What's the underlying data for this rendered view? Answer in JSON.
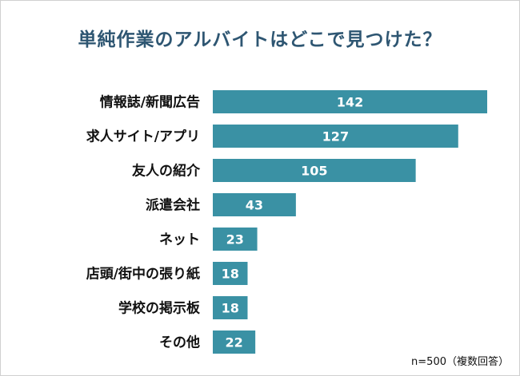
{
  "title": "単純作業のアルバイトはどこで見つけた？",
  "note": "n=500（複数回答）",
  "colors": {
    "bar": "#3a91a4",
    "title": "#2e5672"
  },
  "chart_data": {
    "type": "bar",
    "orientation": "horizontal",
    "title": "単純作業のアルバイトはどこで見つけた？",
    "categories": [
      "情報誌/新聞広告",
      "求人サイト/アプリ",
      "友人の紹介",
      "派遣会社",
      "ネット",
      "店頭/街中の張り紙",
      "学校の掲示板",
      "その他"
    ],
    "values": [
      142,
      127,
      105,
      43,
      23,
      18,
      18,
      22
    ],
    "xlim": [
      0,
      142
    ],
    "grid": false,
    "legend": "none"
  }
}
